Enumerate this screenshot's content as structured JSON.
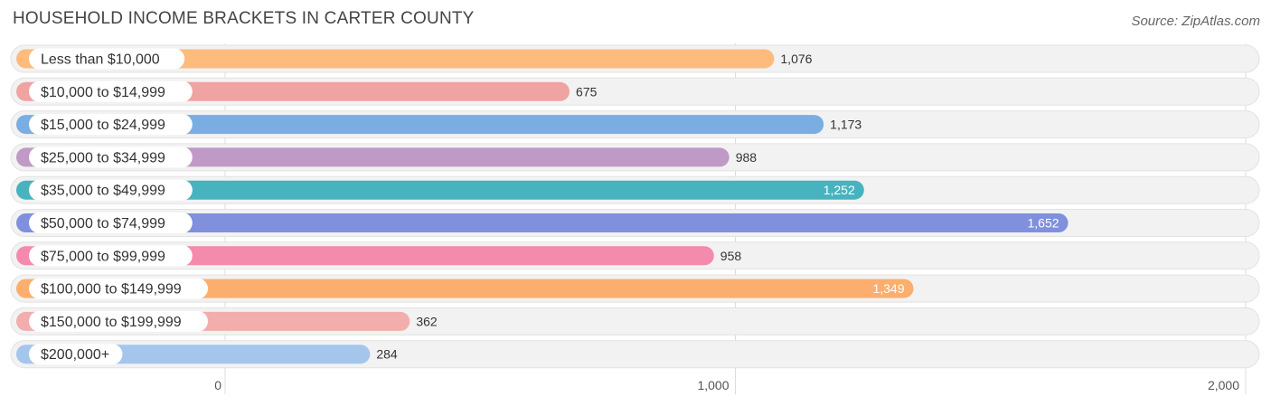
{
  "title": "HOUSEHOLD INCOME BRACKETS IN CARTER COUNTY",
  "source": "Source: ZipAtlas.com",
  "chart_data": {
    "type": "bar",
    "orientation": "horizontal",
    "title": "HOUSEHOLD INCOME BRACKETS IN CARTER COUNTY",
    "categories": [
      "Less than $10,000",
      "$10,000 to $14,999",
      "$15,000 to $24,999",
      "$25,000 to $34,999",
      "$35,000 to $49,999",
      "$50,000 to $74,999",
      "$75,000 to $99,999",
      "$100,000 to $149,999",
      "$150,000 to $199,999",
      "$200,000+"
    ],
    "values": [
      1076,
      675,
      1173,
      988,
      1252,
      1652,
      958,
      1349,
      362,
      284
    ],
    "value_labels": [
      "1,076",
      "675",
      "1,173",
      "988",
      "1,252",
      "1,652",
      "958",
      "1,349",
      "362",
      "284"
    ],
    "colors": [
      "#fdbb7d",
      "#f0a3a3",
      "#7aaee3",
      "#c09ac6",
      "#47b3bf",
      "#8090dc",
      "#f48aac",
      "#fbae6d",
      "#f2adad",
      "#a5c6ec"
    ],
    "xlim": [
      0,
      2000
    ],
    "xticks": [
      0,
      1000,
      2000
    ],
    "xtick_labels": [
      "0",
      "1,000",
      "2,000"
    ],
    "grid": true,
    "legend": "none"
  }
}
